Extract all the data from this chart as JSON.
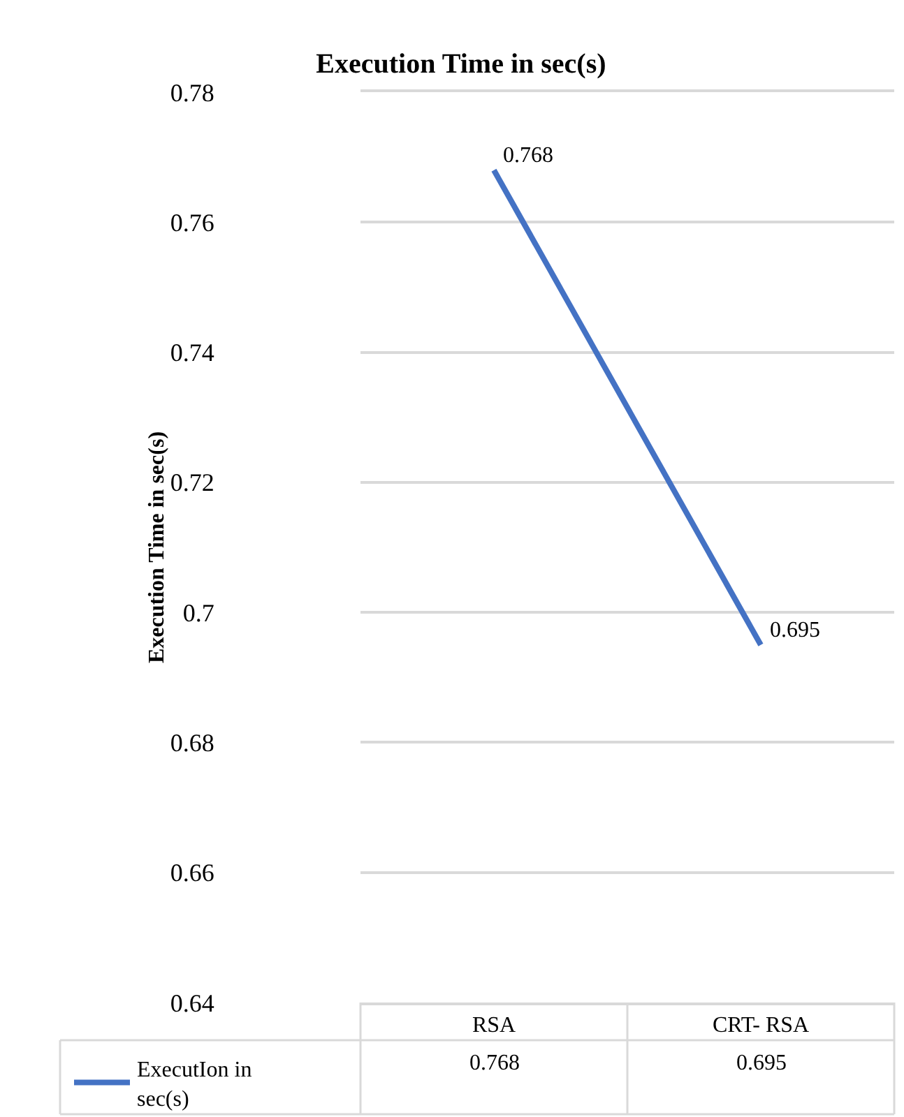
{
  "chart_data": {
    "type": "line",
    "title": "Execution Time in sec(s)",
    "ylabel": "Execution Time in sec(s)",
    "categories": [
      "RSA",
      "CRT- RSA"
    ],
    "series": [
      {
        "name": "ExecutIon in sec(s)",
        "color": "#4472c4",
        "values": [
          0.768,
          0.695
        ]
      }
    ],
    "ylim": [
      0.64,
      0.78
    ],
    "yticks": [
      0.64,
      0.66,
      0.68,
      0.7,
      0.72,
      0.74,
      0.76,
      0.78
    ],
    "annotations": [
      {
        "text": "0.768",
        "x": "RSA",
        "y": 0.768
      },
      {
        "text": "0.695",
        "x": "CRT- RSA",
        "y": 0.695
      }
    ],
    "grid": "y",
    "legend": "bottom left",
    "data_labels": true,
    "marker": "none",
    "line_style": "solid"
  }
}
